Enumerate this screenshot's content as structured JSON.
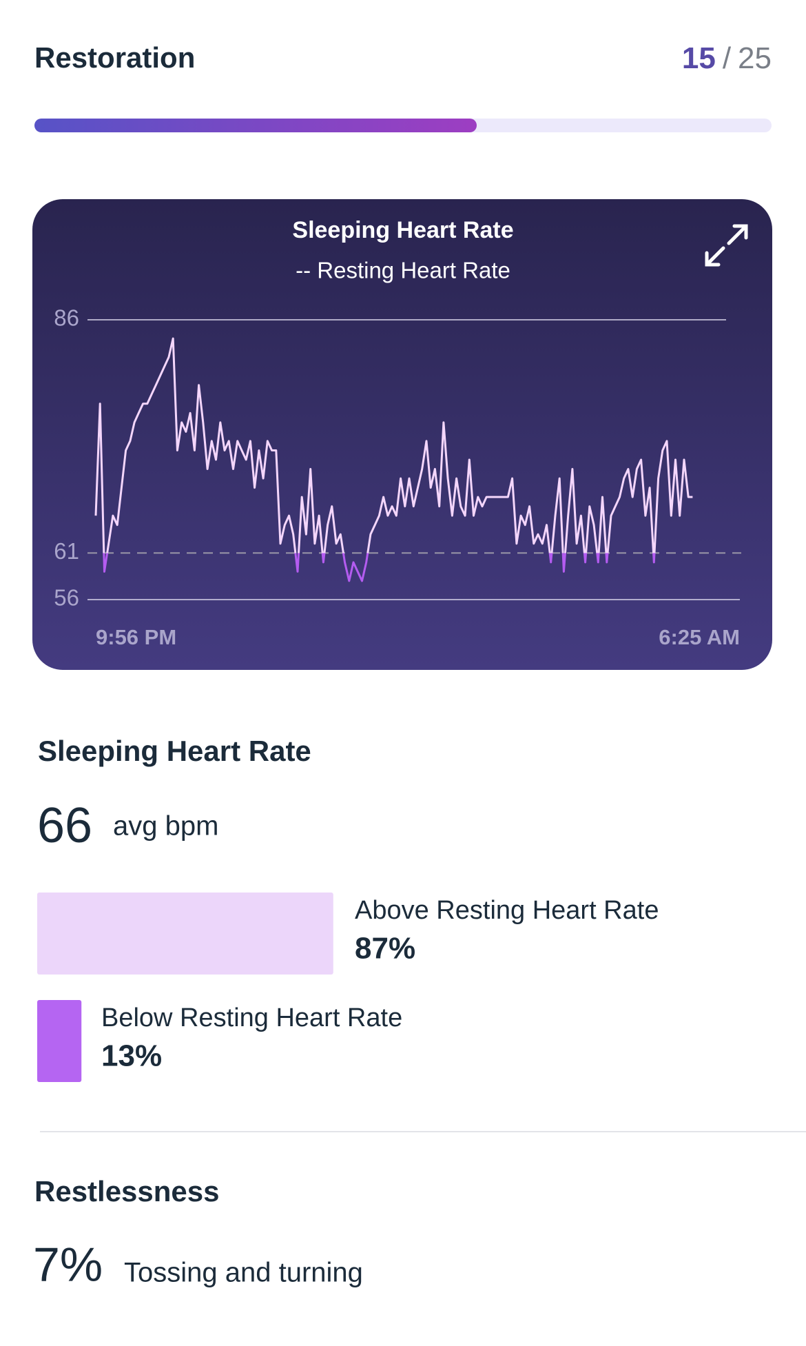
{
  "header": {
    "title": "Restoration",
    "score": 15,
    "separator": "/",
    "max_score": 25,
    "bar_color_start": "#5753c6",
    "bar_color_end": "#9d3ec2",
    "track_color": "#ece9fb"
  },
  "chart_data": {
    "type": "line",
    "title": "Sleeping Heart Rate",
    "subtitle": "-- Resting Heart Rate",
    "categories": [
      "9:56 PM",
      null,
      null,
      null,
      null,
      null,
      null,
      null,
      null,
      null,
      null,
      null,
      null,
      null,
      null,
      null,
      null,
      null,
      null,
      null,
      null,
      null,
      null,
      null,
      null,
      null,
      null,
      null,
      null,
      null,
      null,
      null,
      null,
      null,
      null,
      null,
      null,
      null,
      null,
      null,
      null,
      null,
      null,
      null,
      null,
      null,
      null,
      null,
      null,
      null,
      null,
      null,
      null,
      null,
      null,
      null,
      null,
      null,
      null,
      null,
      null,
      null,
      null,
      null,
      null,
      null,
      null,
      null,
      null,
      null,
      null,
      null,
      null,
      null,
      null,
      null,
      null,
      null,
      null,
      null,
      null,
      null,
      null,
      null,
      null,
      null,
      null,
      null,
      null,
      null,
      null,
      null,
      null,
      null,
      null,
      null,
      null,
      null,
      null,
      null,
      null,
      null,
      null,
      null,
      null,
      null,
      null,
      null,
      null,
      null,
      null,
      null,
      null,
      null,
      null,
      null,
      null,
      null,
      null,
      null,
      null,
      null,
      null,
      null,
      null,
      null,
      null,
      null,
      null,
      null,
      null,
      null,
      null,
      null,
      null,
      null,
      null,
      null,
      null,
      null,
      null,
      null,
      null,
      null,
      null,
      null,
      null,
      null,
      null,
      null,
      "6:25 AM"
    ],
    "values": [
      65,
      77,
      59,
      62,
      65,
      64,
      68,
      72,
      73,
      75,
      76,
      77,
      77,
      78,
      79,
      80,
      81,
      82,
      84,
      72,
      75,
      74,
      76,
      72,
      79,
      75,
      70,
      73,
      71,
      75,
      72,
      73,
      70,
      73,
      72,
      71,
      73,
      68,
      72,
      69,
      73,
      72,
      72,
      62,
      64,
      65,
      63,
      59,
      67,
      63,
      70,
      62,
      65,
      60,
      64,
      66,
      62,
      63,
      60,
      58,
      60,
      59,
      58,
      60,
      63,
      64,
      65,
      67,
      65,
      66,
      65,
      69,
      66,
      69,
      66,
      68,
      70,
      73,
      68,
      70,
      66,
      75,
      69,
      65,
      69,
      66,
      65,
      71,
      65,
      67,
      66,
      67,
      67,
      67,
      67,
      67,
      67,
      69,
      62,
      65,
      64,
      66,
      62,
      63,
      62,
      64,
      60,
      65,
      69,
      59,
      65,
      70,
      62,
      65,
      60,
      66,
      64,
      60,
      67,
      60,
      65,
      66,
      67,
      69,
      70,
      67,
      70,
      71,
      65,
      68,
      60,
      69,
      72,
      73,
      65,
      71,
      65,
      71,
      67,
      67,
      null,
      null,
      null,
      null,
      null,
      null,
      null,
      null,
      null,
      null,
      null
    ],
    "color": "#f4d6fb",
    "below_color": "#b45cf0",
    "resting_heart_rate": 61,
    "ylim": [
      56,
      86
    ],
    "yticks": [
      56,
      61,
      86
    ],
    "grid": true
  },
  "summary": {
    "title": "Sleeping Heart Rate",
    "average": 66,
    "unit": "avg bpm",
    "breakdown": [
      {
        "label": "Above Resting Heart Rate",
        "value": 87,
        "value_label": "87%",
        "color": "#ecd6fa"
      },
      {
        "label": "Below Resting Heart Rate",
        "value": 13,
        "value_label": "13%",
        "color": "#b565f2"
      }
    ]
  },
  "restlessness": {
    "title": "Restlessness",
    "percent": "7%",
    "description": "Tossing and turning"
  }
}
